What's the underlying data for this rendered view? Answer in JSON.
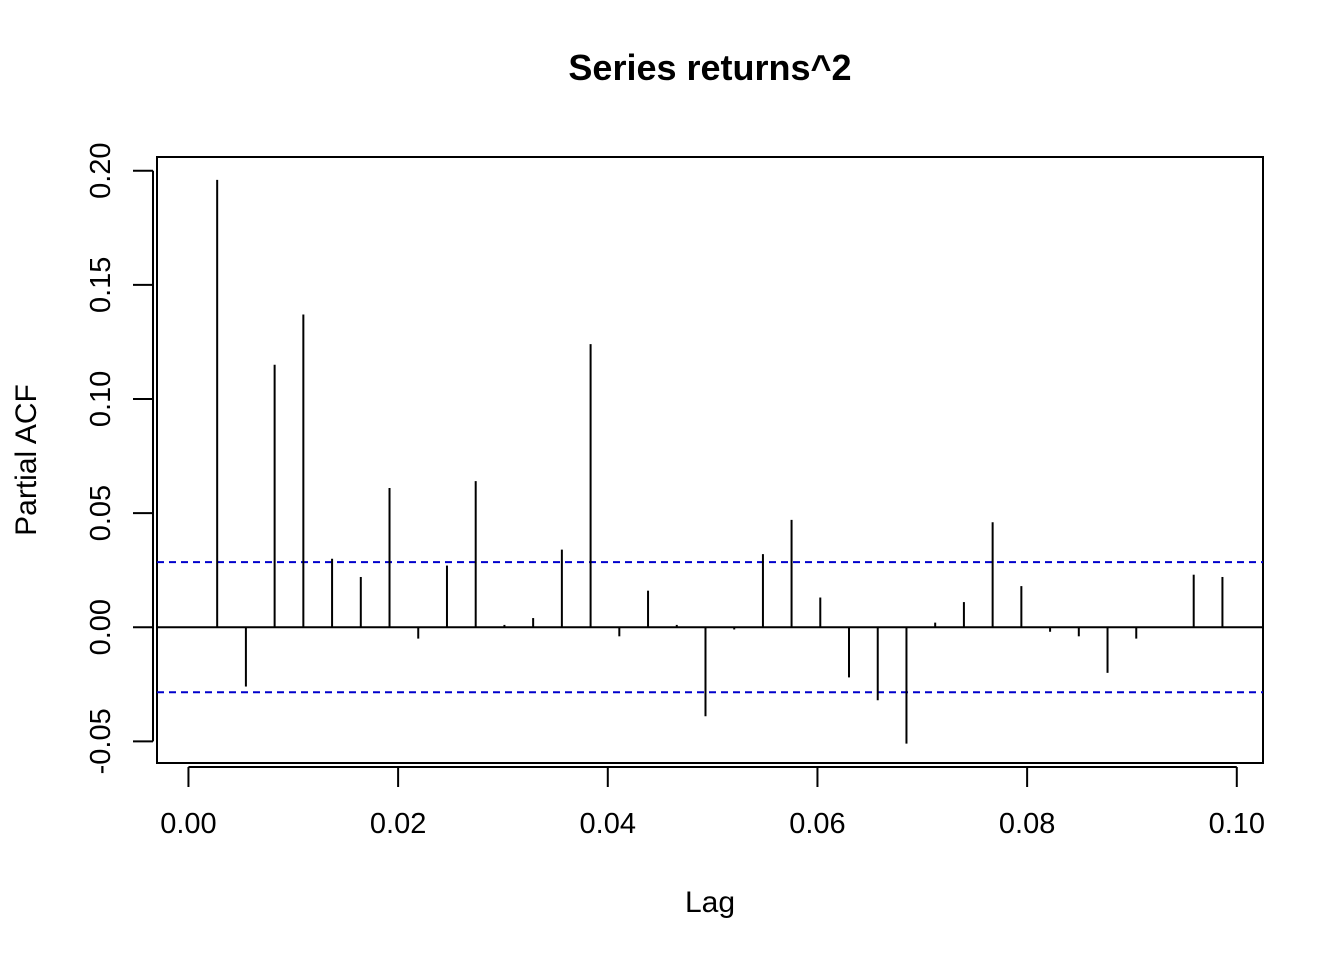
{
  "chart_data": {
    "type": "bar",
    "title": "Series  returns^2",
    "xlabel": "Lag",
    "ylabel": "Partial ACF",
    "xlim": [
      -0.003,
      0.1025
    ],
    "ylim": [
      -0.0595,
      0.206
    ],
    "xticks": [
      0.0,
      0.02,
      0.04,
      0.06,
      0.08,
      0.1
    ],
    "xtick_labels": [
      "0.00",
      "0.02",
      "0.04",
      "0.06",
      "0.08",
      "0.10"
    ],
    "yticks": [
      -0.05,
      0.0,
      0.05,
      0.1,
      0.15,
      0.2
    ],
    "ytick_labels": [
      "-0.05",
      "0.00",
      "0.05",
      "0.10",
      "0.15",
      "0.20"
    ],
    "confidence_limit": 0.0285,
    "confidence_color": "#0000cc",
    "bar_color": "#000000",
    "series": [
      {
        "x": [
          0.00274,
          0.00548,
          0.00822,
          0.01096,
          0.0137,
          0.01644,
          0.01918,
          0.02192,
          0.02466,
          0.0274,
          0.03014,
          0.03288,
          0.03562,
          0.03836,
          0.0411,
          0.04384,
          0.04658,
          0.04932,
          0.05206,
          0.0548,
          0.05753,
          0.06027,
          0.06301,
          0.06575,
          0.06849,
          0.07123,
          0.07397,
          0.07671,
          0.07945,
          0.08219,
          0.08493,
          0.08767,
          0.09041,
          0.09315,
          0.09589,
          0.09863
        ],
        "values": [
          0.196,
          -0.026,
          0.115,
          0.137,
          0.03,
          0.022,
          0.061,
          -0.005,
          0.027,
          0.064,
          0.001,
          0.004,
          0.034,
          0.124,
          -0.004,
          0.016,
          0.001,
          -0.039,
          -0.001,
          0.032,
          0.047,
          0.013,
          -0.022,
          -0.032,
          -0.051,
          0.002,
          0.011,
          0.046,
          0.018,
          -0.002,
          -0.004,
          -0.02,
          -0.005,
          0.0,
          0.023,
          0.022
        ]
      }
    ]
  }
}
